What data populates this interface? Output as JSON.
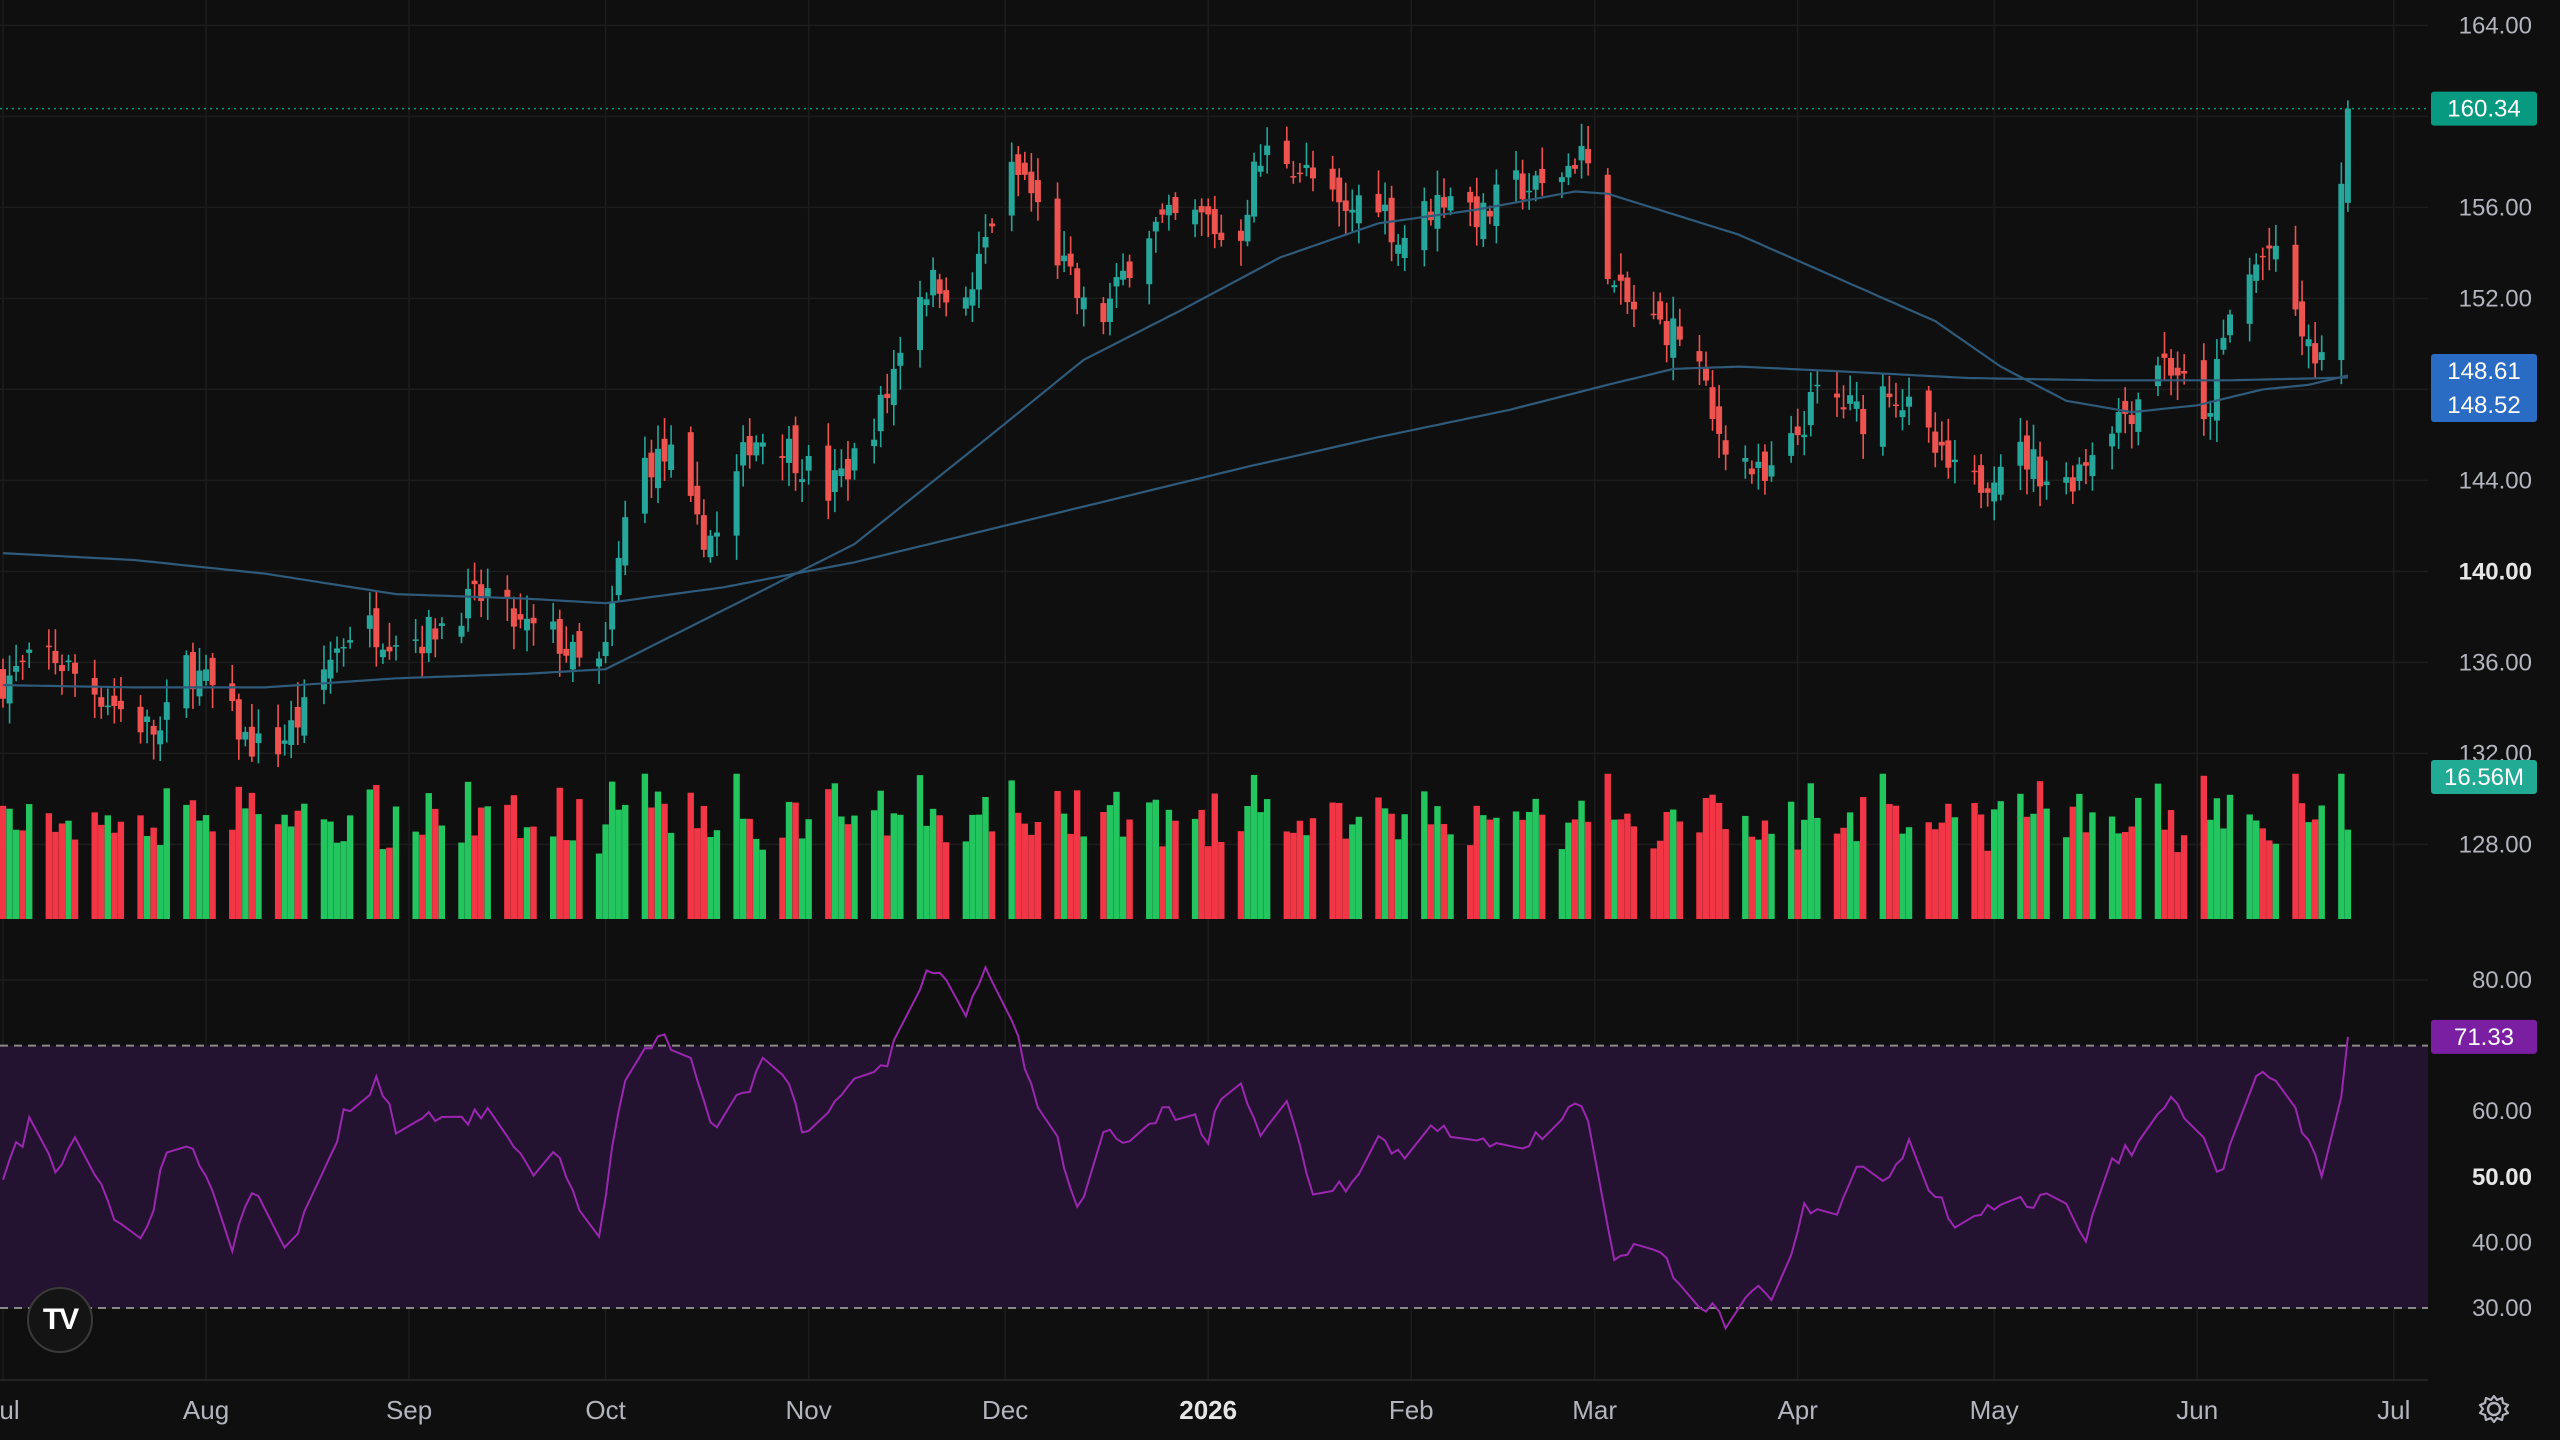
{
  "logo": {
    "text": "TV",
    "icon": "tradingview-logo-icon"
  },
  "settings": {
    "icon": "gear-icon"
  },
  "chart_data": {
    "type": "candlestick",
    "price_axis": {
      "ticks": [
        128,
        132,
        136,
        140,
        144,
        148,
        152,
        156,
        160,
        164
      ],
      "bold_tick": 140,
      "ylim": [
        124.5,
        164.5
      ]
    },
    "rsi_axis": {
      "ticks": [
        30,
        40,
        50,
        60,
        80
      ],
      "bold_tick": 50,
      "ylim": [
        22,
        87
      ],
      "overbought": 70,
      "oversold": 30
    },
    "x_labels": [
      {
        "label": "Jul",
        "day": 0
      },
      {
        "label": "Aug",
        "day": 31
      },
      {
        "label": "Sep",
        "day": 62
      },
      {
        "label": "Oct",
        "day": 92
      },
      {
        "label": "Nov",
        "day": 123
      },
      {
        "label": "Dec",
        "day": 153
      },
      {
        "label": "2026",
        "day": 184,
        "bold": true
      },
      {
        "label": "Feb",
        "day": 215
      },
      {
        "label": "Mar",
        "day": 243
      },
      {
        "label": "Apr",
        "day": 274
      },
      {
        "label": "May",
        "day": 304
      },
      {
        "label": "Jun",
        "day": 335
      },
      {
        "label": "Jul",
        "day": 365
      }
    ],
    "last_day": 358,
    "price_path": [
      [
        0,
        135.2
      ],
      [
        7,
        136.4
      ],
      [
        14,
        134.8
      ],
      [
        20,
        133.5
      ],
      [
        24,
        132.8
      ],
      [
        28,
        135.9
      ],
      [
        33,
        134.5
      ],
      [
        37,
        132.6
      ],
      [
        41,
        132.0
      ],
      [
        46,
        133.8
      ],
      [
        50,
        136.2
      ],
      [
        54,
        137.8
      ],
      [
        58,
        137.3
      ],
      [
        64,
        137.1
      ],
      [
        70,
        138.4
      ],
      [
        74,
        139.0
      ],
      [
        79,
        137.5
      ],
      [
        84,
        137.2
      ],
      [
        88,
        135.9
      ],
      [
        90,
        135.3
      ],
      [
        92,
        136.4
      ],
      [
        95,
        142.2
      ],
      [
        98,
        144.8
      ],
      [
        102,
        145.0
      ],
      [
        106,
        141.8
      ],
      [
        109,
        141.5
      ],
      [
        114,
        145.8
      ],
      [
        118,
        146.0
      ],
      [
        123,
        144.5
      ],
      [
        126,
        143.5
      ],
      [
        131,
        145.3
      ],
      [
        135,
        147.8
      ],
      [
        139,
        152.2
      ],
      [
        143,
        152.8
      ],
      [
        147,
        151.5
      ],
      [
        150,
        154.5
      ],
      [
        153,
        157.5
      ],
      [
        156,
        157.3
      ],
      [
        160,
        154.5
      ],
      [
        165,
        151.5
      ],
      [
        166,
        150.2
      ],
      [
        170,
        152.3
      ],
      [
        174,
        155.0
      ],
      [
        180,
        155.5
      ],
      [
        184,
        155.5
      ],
      [
        188,
        153.8
      ],
      [
        191,
        157.5
      ],
      [
        194,
        158.8
      ],
      [
        200,
        157.2
      ],
      [
        205,
        155.5
      ],
      [
        209,
        157.2
      ],
      [
        213,
        154.5
      ],
      [
        216,
        155.5
      ],
      [
        221,
        156.8
      ],
      [
        226,
        155.5
      ],
      [
        230,
        157.0
      ],
      [
        235,
        156.8
      ],
      [
        239,
        157.8
      ],
      [
        241,
        158.6
      ],
      [
        243,
        156.2
      ],
      [
        246,
        152.3
      ],
      [
        250,
        151.2
      ],
      [
        253,
        150.8
      ],
      [
        258,
        150.2
      ],
      [
        261,
        146.5
      ],
      [
        265,
        145.2
      ],
      [
        269,
        143.8
      ],
      [
        273,
        145.5
      ],
      [
        277,
        147.8
      ],
      [
        280,
        147.5
      ],
      [
        284,
        146.8
      ],
      [
        288,
        148.3
      ],
      [
        292,
        146.6
      ],
      [
        296,
        144.8
      ],
      [
        300,
        143.6
      ],
      [
        303,
        144.2
      ],
      [
        306,
        145.5
      ],
      [
        310,
        144.8
      ],
      [
        314,
        143.5
      ],
      [
        319,
        145.4
      ],
      [
        321,
        146.5
      ],
      [
        325,
        147.2
      ],
      [
        329,
        149.4
      ],
      [
        332,
        148.8
      ],
      [
        336,
        146.2
      ],
      [
        340,
        151.2
      ],
      [
        343,
        153.0
      ],
      [
        346,
        154.2
      ],
      [
        349,
        152.3
      ],
      [
        352,
        149.6
      ],
      [
        354,
        149.4
      ],
      [
        356,
        152.8
      ],
      [
        357,
        156.3
      ],
      [
        358,
        160.34
      ]
    ],
    "ma_slow": [
      [
        0,
        140.8
      ],
      [
        20,
        140.5
      ],
      [
        40,
        139.9
      ],
      [
        60,
        139.0
      ],
      [
        80,
        138.8
      ],
      [
        92,
        138.6
      ],
      [
        110,
        139.3
      ],
      [
        130,
        140.4
      ],
      [
        150,
        141.8
      ],
      [
        170,
        143.2
      ],
      [
        190,
        144.6
      ],
      [
        210,
        145.9
      ],
      [
        230,
        147.1
      ],
      [
        245,
        148.2
      ],
      [
        255,
        148.9
      ],
      [
        265,
        149.0
      ],
      [
        280,
        148.8
      ],
      [
        300,
        148.5
      ],
      [
        320,
        148.4
      ],
      [
        340,
        148.4
      ],
      [
        358,
        148.52
      ]
    ],
    "ma_fast": [
      [
        0,
        135.0
      ],
      [
        20,
        134.9
      ],
      [
        40,
        134.9
      ],
      [
        60,
        135.3
      ],
      [
        80,
        135.5
      ],
      [
        92,
        135.7
      ],
      [
        110,
        138.3
      ],
      [
        130,
        141.2
      ],
      [
        150,
        145.8
      ],
      [
        165,
        149.3
      ],
      [
        180,
        151.5
      ],
      [
        195,
        153.8
      ],
      [
        210,
        155.3
      ],
      [
        225,
        155.9
      ],
      [
        240,
        156.7
      ],
      [
        245,
        156.6
      ],
      [
        255,
        155.7
      ],
      [
        265,
        154.8
      ],
      [
        280,
        152.9
      ],
      [
        295,
        151.0
      ],
      [
        305,
        149.0
      ],
      [
        315,
        147.5
      ],
      [
        325,
        147.0
      ],
      [
        335,
        147.3
      ],
      [
        345,
        148.0
      ],
      [
        352,
        148.2
      ],
      [
        358,
        148.61
      ]
    ],
    "rsi_path": [
      [
        0,
        50
      ],
      [
        4,
        58
      ],
      [
        8,
        52
      ],
      [
        12,
        57
      ],
      [
        17,
        44
      ],
      [
        21,
        40
      ],
      [
        26,
        56
      ],
      [
        31,
        51
      ],
      [
        35,
        40
      ],
      [
        39,
        48
      ],
      [
        43,
        39
      ],
      [
        48,
        47
      ],
      [
        52,
        60
      ],
      [
        57,
        64
      ],
      [
        61,
        56
      ],
      [
        66,
        60
      ],
      [
        71,
        58
      ],
      [
        75,
        62
      ],
      [
        80,
        51
      ],
      [
        85,
        53
      ],
      [
        89,
        43
      ],
      [
        91,
        40
      ],
      [
        93,
        55
      ],
      [
        96,
        71
      ],
      [
        100,
        70
      ],
      [
        104,
        71
      ],
      [
        108,
        58
      ],
      [
        113,
        62
      ],
      [
        118,
        70
      ],
      [
        122,
        57
      ],
      [
        126,
        59
      ],
      [
        131,
        65
      ],
      [
        135,
        68
      ],
      [
        139,
        80
      ],
      [
        143,
        80
      ],
      [
        147,
        75
      ],
      [
        150,
        81
      ],
      [
        153,
        80
      ],
      [
        156,
        65
      ],
      [
        160,
        58
      ],
      [
        164,
        45
      ],
      [
        169,
        58
      ],
      [
        173,
        55
      ],
      [
        177,
        60
      ],
      [
        181,
        60
      ],
      [
        184,
        56
      ],
      [
        188,
        68
      ],
      [
        192,
        57
      ],
      [
        196,
        61
      ],
      [
        200,
        48
      ],
      [
        205,
        49
      ],
      [
        210,
        56
      ],
      [
        214,
        53
      ],
      [
        218,
        59
      ],
      [
        223,
        54
      ],
      [
        228,
        56
      ],
      [
        233,
        55
      ],
      [
        238,
        59
      ],
      [
        241,
        62
      ],
      [
        243,
        53
      ],
      [
        246,
        38
      ],
      [
        250,
        40
      ],
      [
        255,
        36
      ],
      [
        259,
        31
      ],
      [
        263,
        28
      ],
      [
        268,
        32
      ],
      [
        271,
        30
      ],
      [
        275,
        45
      ],
      [
        279,
        43
      ],
      [
        283,
        52
      ],
      [
        287,
        50
      ],
      [
        291,
        55
      ],
      [
        295,
        47
      ],
      [
        299,
        42
      ],
      [
        302,
        43
      ],
      [
        306,
        48
      ],
      [
        310,
        46
      ],
      [
        314,
        49
      ],
      [
        318,
        40
      ],
      [
        322,
        53
      ],
      [
        326,
        55
      ],
      [
        330,
        62
      ],
      [
        334,
        59
      ],
      [
        339,
        50
      ],
      [
        342,
        62
      ],
      [
        345,
        66
      ],
      [
        348,
        63
      ],
      [
        351,
        58
      ],
      [
        354,
        49
      ],
      [
        356,
        55
      ],
      [
        358,
        71.33
      ]
    ],
    "volume": {
      "ylim": [
        0,
        35
      ],
      "max_volume_shown": 33.0
    },
    "last_values": {
      "price": "160.34",
      "ma_fast": "148.61",
      "ma_slow": "148.52",
      "volume": "16.56M",
      "rsi": "71.33"
    },
    "colors": {
      "up": "#26a69a",
      "down": "#ef5350",
      "volume_up": "#22c55e",
      "volume_down": "#f23645",
      "ma": "#2f5a7a",
      "rsi": "#9b27b0",
      "rsi_band": "#241330",
      "price_badge": "#089981",
      "ma_badge": "#2962ff",
      "volume_badge": "#22ab94",
      "rsi_badge": "#7b1fa2",
      "grid": "#1d1d1d",
      "text": "#b2b5be"
    }
  }
}
